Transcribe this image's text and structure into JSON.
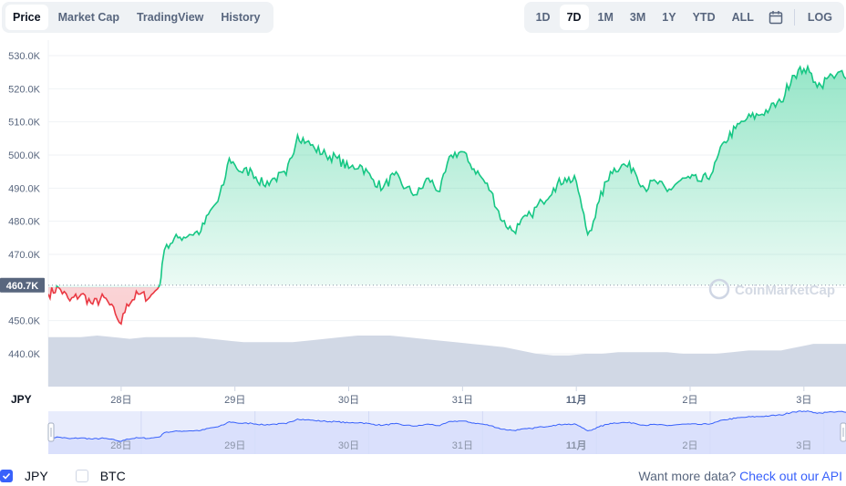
{
  "tabs": [
    "Price",
    "Market Cap",
    "TradingView",
    "History"
  ],
  "ranges": [
    "1D",
    "7D",
    "1M",
    "3M",
    "1Y",
    "YTD",
    "ALL"
  ],
  "log_label": "LOG",
  "currency_label": "JPY",
  "current_price_label": "460.7K",
  "watermark": "CoinMarketCap",
  "legend": {
    "jpy": "JPY",
    "btc": "BTC"
  },
  "api": {
    "text": "Want more data? ",
    "link": "Check out our API"
  },
  "colors": {
    "up": "#16c784",
    "down": "#ea3943",
    "volume": "#cfd6e4",
    "nav_line": "#3861fb"
  },
  "chart_data": {
    "type": "line",
    "currency": "JPY",
    "reference_price": 460.7,
    "ylim": [
      435,
      532
    ],
    "y_unit": "K",
    "yticks": [
      440,
      450,
      460,
      470,
      480,
      490,
      500,
      510,
      520,
      530
    ],
    "ytick_labels": [
      "440.0K",
      "450.0K",
      "460.0K",
      "470.0K",
      "480.0K",
      "490.0K",
      "500.0K",
      "510.0K",
      "520.0K",
      "530.0K"
    ],
    "xticks": [
      {
        "x": 1,
        "label": "28日"
      },
      {
        "x": 2,
        "label": "29日"
      },
      {
        "x": 3,
        "label": "30日"
      },
      {
        "x": 4,
        "label": "31日"
      },
      {
        "x": 5,
        "label": "11月"
      },
      {
        "x": 6,
        "label": "2日"
      },
      {
        "x": 7,
        "label": "3日"
      }
    ],
    "xlim": [
      0.36,
      7.37
    ],
    "series": [
      {
        "x": [
          0.36,
          0.45,
          0.55,
          0.65,
          0.75,
          0.85,
          0.95,
          1.0,
          1.05,
          1.15,
          1.25,
          1.3,
          1.34,
          1.36,
          1.4,
          1.5,
          1.6,
          1.7,
          1.8,
          1.85,
          1.9,
          1.95,
          2.0,
          2.05,
          2.15,
          2.25,
          2.35,
          2.45,
          2.55,
          2.63,
          2.7,
          2.8,
          2.9,
          3.0,
          3.1,
          3.2,
          3.3,
          3.4,
          3.5,
          3.6,
          3.7,
          3.8,
          3.9,
          4.0,
          4.05,
          4.15,
          4.25,
          4.35,
          4.45,
          4.5,
          4.6,
          4.7,
          4.8,
          4.9,
          5.0,
          5.05,
          5.1,
          5.15,
          5.2,
          5.3,
          5.4,
          5.5,
          5.6,
          5.7,
          5.8,
          5.9,
          6.0,
          6.1,
          6.2,
          6.3,
          6.4,
          6.5,
          6.6,
          6.7,
          6.8,
          6.9,
          7.0,
          7.05,
          7.1,
          7.15,
          7.2,
          7.25,
          7.3,
          7.37
        ],
        "values": [
          458,
          460,
          456,
          458,
          455,
          457,
          452,
          449,
          455,
          458,
          457,
          459,
          460.7,
          467,
          473,
          475,
          476,
          477,
          484,
          486,
          491,
          499,
          497,
          495,
          495,
          491,
          493,
          494,
          506,
          504,
          502,
          500,
          499,
          496,
          497,
          493,
          490,
          494,
          490,
          488,
          493,
          489,
          500,
          501,
          498,
          494,
          489,
          480,
          477,
          479,
          482,
          486,
          490,
          493,
          492,
          484,
          476,
          480,
          486,
          495,
          497,
          496,
          490,
          492,
          489,
          492,
          493,
          492,
          495,
          504,
          508,
          511,
          512,
          514,
          516,
          524,
          526,
          525,
          522,
          521,
          523,
          524,
          525,
          523
        ]
      }
    ],
    "volume_band_top": [
      445,
      445,
      445,
      445.5,
      445,
      444.5,
      445,
      445,
      445,
      445,
      444.5,
      444,
      443.5,
      443.5,
      443.5,
      443.5,
      444,
      444.5,
      445,
      445.5,
      445.5,
      445.5,
      445,
      444.5,
      444,
      443.5,
      443,
      442.5,
      442,
      441,
      440,
      439.5,
      439.5,
      440,
      440,
      440.5,
      440.5,
      440.5,
      440.5,
      440,
      440,
      440,
      440.5,
      441,
      441,
      441,
      442,
      443,
      443,
      443
    ],
    "navigator_labels": [
      "28日",
      "29日",
      "30日",
      "31日",
      "11月",
      "2日",
      "3日"
    ]
  }
}
